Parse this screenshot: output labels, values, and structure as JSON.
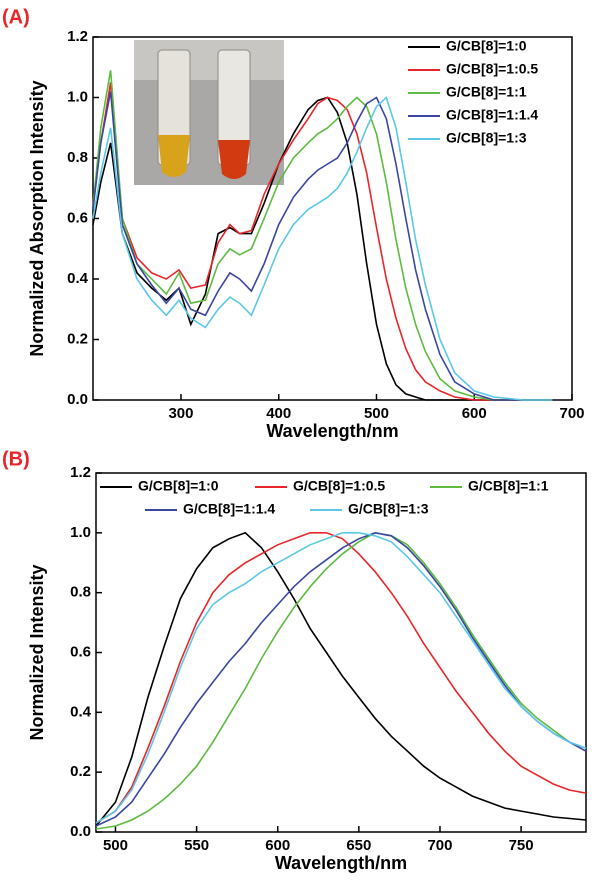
{
  "chart_data": [
    {
      "type": "line",
      "panel_label": "(A)",
      "x_label": "Wavelength/nm",
      "y_label": "Normalized Absorption Intensity",
      "xlim": [
        210,
        700
      ],
      "xticks": [
        300,
        400,
        500,
        600,
        700
      ],
      "ylim": [
        0,
        1.2
      ],
      "yticks": [
        {
          "value": 0,
          "label": "0.0"
        },
        0.2,
        0.4,
        0.6,
        0.8,
        {
          "value": 1,
          "label": "1.0"
        },
        1.2
      ],
      "legend": "upper right",
      "x": [
        210,
        218,
        228,
        240,
        255,
        270,
        285,
        298,
        310,
        325,
        338,
        350,
        360,
        372,
        385,
        400,
        415,
        430,
        440,
        450,
        460,
        470,
        480,
        490,
        500,
        510,
        520,
        530,
        540,
        550,
        565,
        580,
        600,
        620,
        650,
        680
      ],
      "series": [
        {
          "name": "G/CB[8]=1:0",
          "color": "#000000",
          "values": [
            0.58,
            0.72,
            0.85,
            0.55,
            0.42,
            0.37,
            0.33,
            0.37,
            0.25,
            0.35,
            0.55,
            0.57,
            0.55,
            0.55,
            0.65,
            0.78,
            0.88,
            0.96,
            0.99,
            1.0,
            0.95,
            0.85,
            0.68,
            0.45,
            0.25,
            0.12,
            0.05,
            0.02,
            0.01,
            0,
            0,
            0,
            0,
            0,
            0,
            0
          ]
        },
        {
          "name": "G/CB[8]=1:0.5",
          "color": "#e8262a",
          "values": [
            0.65,
            0.85,
            1.05,
            0.6,
            0.47,
            0.42,
            0.4,
            0.43,
            0.37,
            0.38,
            0.52,
            0.58,
            0.55,
            0.56,
            0.68,
            0.78,
            0.86,
            0.93,
            0.98,
            1.0,
            0.99,
            0.96,
            0.88,
            0.75,
            0.57,
            0.4,
            0.27,
            0.17,
            0.1,
            0.06,
            0.03,
            0.01,
            0,
            0,
            0,
            0
          ]
        },
        {
          "name": "G/CB[8]=1:1",
          "color": "#5dbb3f",
          "values": [
            0.64,
            0.9,
            1.09,
            0.6,
            0.45,
            0.4,
            0.35,
            0.42,
            0.32,
            0.33,
            0.45,
            0.5,
            0.48,
            0.5,
            0.6,
            0.72,
            0.8,
            0.85,
            0.88,
            0.9,
            0.93,
            0.97,
            1.0,
            0.97,
            0.88,
            0.72,
            0.53,
            0.37,
            0.25,
            0.16,
            0.07,
            0.03,
            0.01,
            0,
            0,
            0
          ]
        },
        {
          "name": "G/CB[8]=1:1.4",
          "color": "#3a46a0",
          "values": [
            0.63,
            0.85,
            1.02,
            0.58,
            0.45,
            0.38,
            0.32,
            0.37,
            0.3,
            0.28,
            0.36,
            0.42,
            0.4,
            0.36,
            0.45,
            0.58,
            0.67,
            0.73,
            0.76,
            0.78,
            0.8,
            0.85,
            0.92,
            0.98,
            1.0,
            0.93,
            0.78,
            0.6,
            0.43,
            0.3,
            0.15,
            0.06,
            0.02,
            0,
            0,
            0
          ]
        },
        {
          "name": "G/CB[8]=1:3",
          "color": "#5bc8e8",
          "values": [
            0.6,
            0.75,
            0.9,
            0.55,
            0.4,
            0.33,
            0.28,
            0.33,
            0.27,
            0.24,
            0.3,
            0.34,
            0.32,
            0.28,
            0.38,
            0.5,
            0.58,
            0.63,
            0.65,
            0.67,
            0.7,
            0.75,
            0.82,
            0.9,
            0.97,
            1.0,
            0.9,
            0.72,
            0.53,
            0.38,
            0.2,
            0.09,
            0.03,
            0.01,
            0,
            0
          ]
        }
      ]
    },
    {
      "type": "line",
      "panel_label": "(B)",
      "x_label": "Wavelength/nm",
      "y_label": "Normalized Intensity",
      "xlim": [
        488,
        790
      ],
      "xticks": [
        500,
        550,
        600,
        650,
        700,
        750
      ],
      "ylim": [
        0,
        1.2
      ],
      "yticks": [
        {
          "value": 0,
          "label": "0.0"
        },
        0.2,
        0.4,
        0.6,
        0.8,
        {
          "value": 1,
          "label": "1.0"
        },
        1.2
      ],
      "legend": "upper center",
      "x": [
        488,
        500,
        510,
        520,
        530,
        540,
        550,
        560,
        570,
        580,
        590,
        600,
        610,
        620,
        630,
        640,
        650,
        660,
        670,
        680,
        690,
        700,
        710,
        720,
        730,
        740,
        750,
        760,
        770,
        780,
        790
      ],
      "series": [
        {
          "name": "G/CB[8]=1:0",
          "color": "#000000",
          "values": [
            0.02,
            0.1,
            0.25,
            0.45,
            0.62,
            0.78,
            0.88,
            0.95,
            0.98,
            1.0,
            0.95,
            0.87,
            0.78,
            0.68,
            0.6,
            0.52,
            0.45,
            0.38,
            0.32,
            0.27,
            0.22,
            0.18,
            0.15,
            0.12,
            0.1,
            0.08,
            0.07,
            0.06,
            0.05,
            0.045,
            0.04
          ]
        },
        {
          "name": "G/CB[8]=1:0.5",
          "color": "#e8262a",
          "values": [
            0.03,
            0.07,
            0.15,
            0.28,
            0.42,
            0.57,
            0.7,
            0.8,
            0.86,
            0.9,
            0.93,
            0.96,
            0.98,
            1.0,
            1.0,
            0.98,
            0.93,
            0.87,
            0.8,
            0.72,
            0.63,
            0.55,
            0.47,
            0.4,
            0.33,
            0.27,
            0.22,
            0.19,
            0.16,
            0.14,
            0.13
          ]
        },
        {
          "name": "G/CB[8]=1:1",
          "color": "#5dbb3f",
          "values": [
            0.01,
            0.02,
            0.04,
            0.07,
            0.11,
            0.16,
            0.22,
            0.3,
            0.39,
            0.48,
            0.58,
            0.67,
            0.75,
            0.82,
            0.88,
            0.93,
            0.97,
            1.0,
            0.99,
            0.96,
            0.9,
            0.83,
            0.75,
            0.66,
            0.58,
            0.5,
            0.43,
            0.38,
            0.34,
            0.3,
            0.28
          ]
        },
        {
          "name": "G/CB[8]=1:1.4",
          "color": "#3a46a0",
          "values": [
            0.02,
            0.05,
            0.1,
            0.18,
            0.26,
            0.35,
            0.43,
            0.5,
            0.57,
            0.63,
            0.7,
            0.76,
            0.82,
            0.87,
            0.91,
            0.95,
            0.98,
            1.0,
            0.99,
            0.95,
            0.89,
            0.82,
            0.74,
            0.65,
            0.57,
            0.49,
            0.42,
            0.37,
            0.33,
            0.3,
            0.27
          ]
        },
        {
          "name": "G/CB[8]=1:3",
          "color": "#5bc8e8",
          "values": [
            0.03,
            0.07,
            0.14,
            0.26,
            0.4,
            0.55,
            0.68,
            0.76,
            0.8,
            0.83,
            0.87,
            0.9,
            0.93,
            0.96,
            0.98,
            1.0,
            1.0,
            0.99,
            0.97,
            0.92,
            0.86,
            0.8,
            0.72,
            0.64,
            0.56,
            0.48,
            0.42,
            0.37,
            0.33,
            0.3,
            0.28
          ]
        }
      ]
    }
  ]
}
